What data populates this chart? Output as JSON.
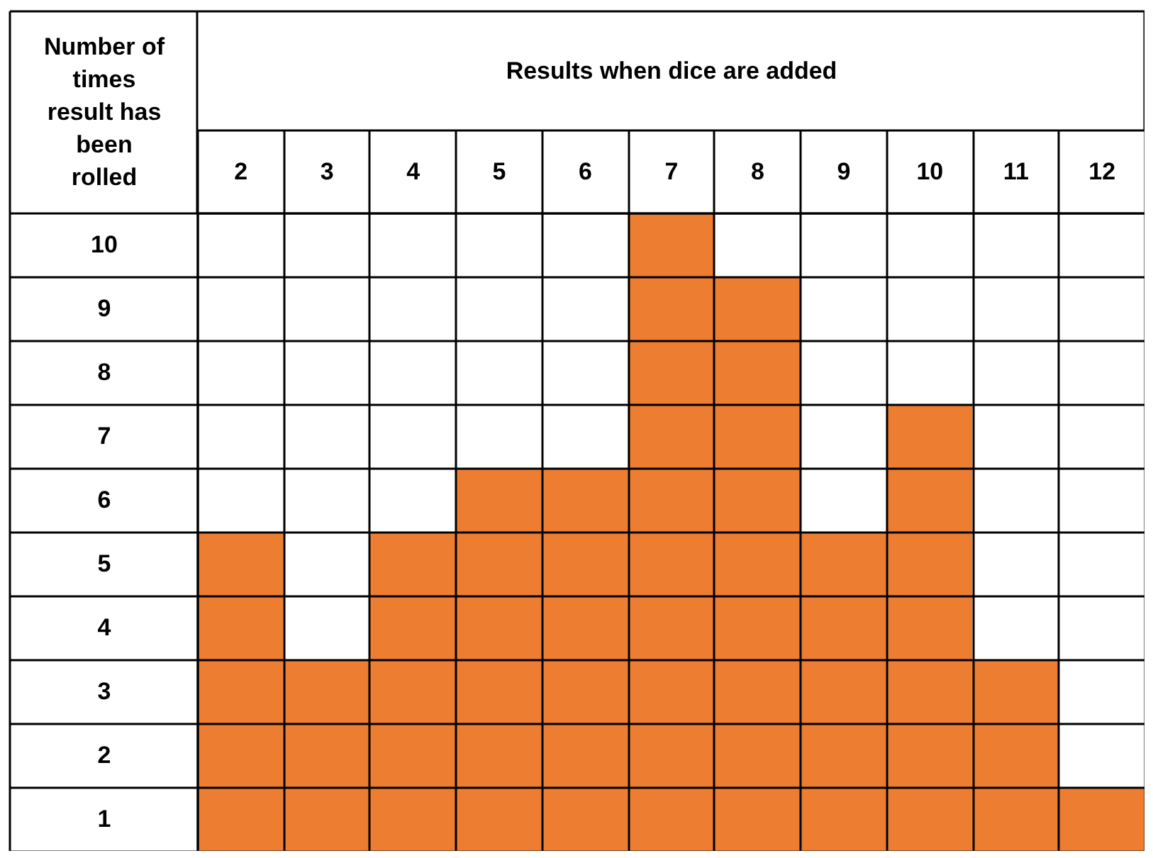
{
  "chart_data": {
    "type": "bar",
    "xlabel": "Results when dice are added",
    "ylabel": "Number of times result has been rolled",
    "categories": [
      "2",
      "3",
      "4",
      "5",
      "6",
      "7",
      "8",
      "9",
      "10",
      "11",
      "12"
    ],
    "values": [
      5,
      3,
      5,
      6,
      6,
      10,
      9,
      5,
      7,
      3,
      1
    ],
    "color": "#ed7d31",
    "ylim": [
      0,
      10
    ],
    "yticks": [
      {
        "value": 0,
        "label": null
      },
      {
        "value": 0.5,
        "label": "1"
      },
      {
        "value": 1,
        "label": null
      },
      {
        "value": 1.5,
        "label": "2"
      },
      {
        "value": 2,
        "label": null
      },
      {
        "value": 2.5,
        "label": "3"
      },
      {
        "value": 3,
        "label": null
      },
      {
        "value": 3.5,
        "label": "4"
      },
      {
        "value": 4,
        "label": null
      },
      {
        "value": 4.5,
        "label": "5"
      },
      {
        "value": 5,
        "label": null
      },
      {
        "value": 5.5,
        "label": "6"
      },
      {
        "value": 6,
        "label": null
      },
      {
        "value": 6.5,
        "label": "7"
      },
      {
        "value": 7,
        "label": null
      },
      {
        "value": 7.5,
        "label": "8"
      },
      {
        "value": 8,
        "label": null
      },
      {
        "value": 8.5,
        "label": "9"
      },
      {
        "value": 9,
        "label": null
      },
      {
        "value": 9.5,
        "label": "10"
      },
      {
        "value": 10,
        "label": null
      }
    ],
    "grid": true
  }
}
